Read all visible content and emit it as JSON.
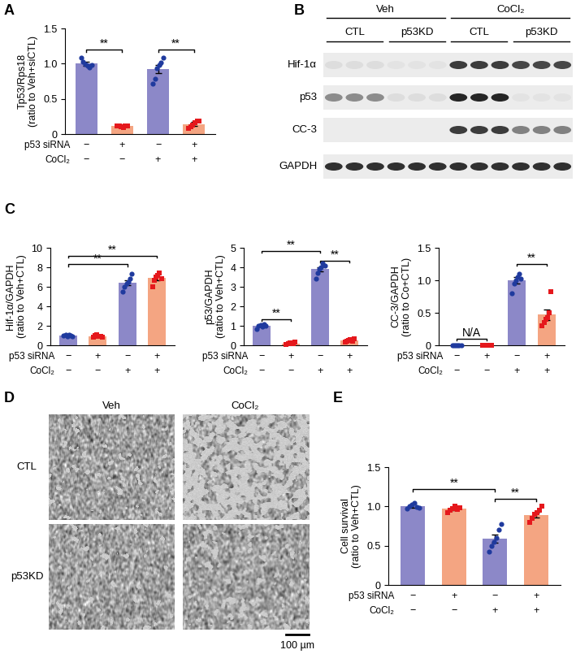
{
  "chart_data": [
    {
      "panel": "A",
      "type": "bar",
      "ylabel": "Tp53/Rps18\n(ratio to Veh+siCTL)",
      "categories": [
        null,
        null,
        null,
        null
      ],
      "values": [
        1.0,
        0.11,
        0.92,
        0.14
      ],
      "errors": [
        0.03,
        0.01,
        0.06,
        0.03
      ],
      "points": [
        [
          1.08,
          1.03,
          0.99,
          0.97,
          0.95,
          0.98
        ],
        [
          0.11,
          0.12,
          0.1,
          0.09,
          0.11,
          0.12
        ],
        [
          0.72,
          0.78,
          0.93,
          0.98,
          1.02,
          1.09
        ],
        [
          0.08,
          0.1,
          0.13,
          0.16,
          0.18,
          0.19
        ]
      ],
      "colors": [
        "#8c88c8",
        "#f4a582",
        "#8c88c8",
        "#f4a582"
      ],
      "point_colors": [
        "#1f3a9e",
        "#e5181c",
        "#1f3a9e",
        "#e5181c"
      ],
      "markers": [
        "circle",
        "square",
        "circle",
        "square"
      ],
      "ylim": [
        0,
        1.5
      ],
      "yticks": [
        0,
        0.5,
        1.0,
        1.5
      ],
      "conditions": [
        {
          "label": "p53 siRNA",
          "values": [
            "−",
            "+",
            "−",
            "+"
          ]
        },
        {
          "label": "CoCl₂",
          "values": [
            "−",
            "−",
            "+",
            "+"
          ]
        }
      ],
      "significance": [
        {
          "from": 0,
          "to": 1,
          "y": 1.2,
          "text": "**"
        },
        {
          "from": 2,
          "to": 3,
          "y": 1.2,
          "text": "**"
        }
      ]
    },
    {
      "panel": "C",
      "type": "bar",
      "ylabel": "Hif-1α/GAPDH\n(ratio to Veh+CTL)",
      "categories": [
        null,
        null,
        null,
        null
      ],
      "values": [
        1.0,
        0.95,
        6.4,
        6.9
      ],
      "errors": [
        0.03,
        0.05,
        0.25,
        0.2
      ],
      "points": [
        [
          1.0,
          1.05,
          0.95,
          1.1,
          0.98,
          0.92
        ],
        [
          0.8,
          1.0,
          1.1,
          0.9,
          0.95,
          0.85
        ],
        [
          5.5,
          6.0,
          6.3,
          6.5,
          6.8,
          7.3
        ],
        [
          6.0,
          6.7,
          7.0,
          7.2,
          7.4,
          6.8
        ]
      ],
      "colors": [
        "#8c88c8",
        "#f4a582",
        "#8c88c8",
        "#f4a582"
      ],
      "point_colors": [
        "#1f3a9e",
        "#e5181c",
        "#1f3a9e",
        "#e5181c"
      ],
      "markers": [
        "circle",
        "square",
        "circle",
        "square"
      ],
      "ylim": [
        0,
        10
      ],
      "yticks": [
        0,
        2,
        4,
        6,
        8,
        10
      ],
      "conditions": [
        {
          "label": "p53 siRNA",
          "values": [
            "−",
            "+",
            "−",
            "+"
          ]
        },
        {
          "label": "CoCl₂",
          "values": [
            "−",
            "−",
            "+",
            "+"
          ]
        }
      ],
      "significance": [
        {
          "from": 0,
          "to": 2,
          "y": 8.3,
          "text": "**"
        },
        {
          "from": 0,
          "to": 3,
          "y": 9.2,
          "text": "**"
        }
      ]
    },
    {
      "panel": "C",
      "type": "bar",
      "ylabel": "p53/GAPDH\n(ratio to Veh+CTL)",
      "categories": [
        null,
        null,
        null,
        null
      ],
      "values": [
        1.0,
        0.1,
        3.9,
        0.25
      ],
      "errors": [
        0.04,
        0.02,
        0.12,
        0.03
      ],
      "points": [
        [
          0.85,
          1.0,
          1.05,
          0.95,
          1.1,
          0.98
        ],
        [
          0.05,
          0.1,
          0.12,
          0.08,
          0.1,
          0.15
        ],
        [
          3.4,
          3.7,
          3.9,
          4.0,
          4.2,
          4.1
        ],
        [
          0.15,
          0.2,
          0.25,
          0.3,
          0.22,
          0.35
        ]
      ],
      "colors": [
        "#8c88c8",
        "#f4a582",
        "#8c88c8",
        "#f4a582"
      ],
      "point_colors": [
        "#1f3a9e",
        "#e5181c",
        "#1f3a9e",
        "#e5181c"
      ],
      "markers": [
        "circle",
        "square",
        "circle",
        "square"
      ],
      "ylim": [
        0,
        5
      ],
      "yticks": [
        0,
        1,
        2,
        3,
        4,
        5
      ],
      "conditions": [
        {
          "label": "p53 siRNA",
          "values": [
            "−",
            "+",
            "−",
            "+"
          ]
        },
        {
          "label": "CoCl₂",
          "values": [
            "−",
            "−",
            "+",
            "+"
          ]
        }
      ],
      "significance": [
        {
          "from": 0,
          "to": 1,
          "y": 1.35,
          "text": "**"
        },
        {
          "from": 0,
          "to": 2,
          "y": 4.85,
          "text": "**"
        },
        {
          "from": 2,
          "to": 3,
          "y": 4.35,
          "text": "**"
        }
      ]
    },
    {
      "panel": "C",
      "type": "bar",
      "ylabel": "CC-3/GAPDH\n(ratio to Co+CTL)",
      "categories": [
        null,
        null,
        null,
        null
      ],
      "values": [
        0,
        0,
        1.0,
        0.47
      ],
      "errors": [
        0,
        0,
        0.05,
        0.08
      ],
      "points": [
        [
          0,
          0,
          0,
          0,
          0,
          0
        ],
        [
          0,
          0,
          0,
          0,
          0,
          0
        ],
        [
          0.8,
          0.95,
          1.0,
          1.05,
          1.1,
          1.02
        ],
        [
          0.3,
          0.35,
          0.4,
          0.42,
          0.5,
          0.83
        ]
      ],
      "colors": [
        "#8c88c8",
        "#f4a582",
        "#8c88c8",
        "#f4a582"
      ],
      "point_colors": [
        "#1f3a9e",
        "#e5181c",
        "#1f3a9e",
        "#e5181c"
      ],
      "markers": [
        "circle",
        "square",
        "circle",
        "square"
      ],
      "ylim": [
        0,
        1.5
      ],
      "yticks": [
        0,
        0.5,
        1.0,
        1.5
      ],
      "conditions": [
        {
          "label": "p53 siRNA",
          "values": [
            "−",
            "+",
            "−",
            "+"
          ]
        },
        {
          "label": "CoCl₂",
          "values": [
            "−",
            "−",
            "+",
            "+"
          ]
        }
      ],
      "significance": [
        {
          "from": 0,
          "to": 1,
          "y": 0.1,
          "text": "N/A"
        },
        {
          "from": 2,
          "to": 3,
          "y": 1.25,
          "text": "**"
        }
      ]
    },
    {
      "panel": "E",
      "type": "bar",
      "ylabel": "Cell survival\n(ratio to Veh+CTL)",
      "categories": [
        null,
        null,
        null,
        null
      ],
      "values": [
        1.0,
        0.97,
        0.59,
        0.89
      ],
      "errors": [
        0.02,
        0.02,
        0.05,
        0.03
      ],
      "points": [
        [
          0.97,
          1.0,
          1.02,
          1.05,
          0.99,
          0.98
        ],
        [
          0.92,
          0.95,
          0.97,
          1.0,
          0.96,
          0.98
        ],
        [
          0.42,
          0.5,
          0.55,
          0.6,
          0.7,
          0.78
        ],
        [
          0.8,
          0.85,
          0.9,
          0.92,
          0.95,
          1.0
        ]
      ],
      "colors": [
        "#8c88c8",
        "#f4a582",
        "#8c88c8",
        "#f4a582"
      ],
      "point_colors": [
        "#1f3a9e",
        "#e5181c",
        "#1f3a9e",
        "#e5181c"
      ],
      "markers": [
        "circle",
        "square",
        "circle",
        "square"
      ],
      "ylim": [
        0,
        1.5
      ],
      "yticks": [
        0,
        0.5,
        1.0,
        1.5
      ],
      "conditions": [
        {
          "label": "p53 siRNA",
          "values": [
            "−",
            "+",
            "−",
            "+"
          ]
        },
        {
          "label": "CoCl₂",
          "values": [
            "−",
            "−",
            "+",
            "+"
          ]
        }
      ],
      "significance": [
        {
          "from": 0,
          "to": 2,
          "y": 1.22,
          "text": "**"
        },
        {
          "from": 2,
          "to": 3,
          "y": 1.1,
          "text": "**"
        }
      ]
    }
  ],
  "blot": {
    "panel": "B",
    "groups": [
      {
        "label": "Veh",
        "lanes": [
          0,
          5
        ]
      },
      {
        "label": "CoCl₂",
        "lanes": [
          6,
          11
        ]
      }
    ],
    "subgroups": [
      {
        "label": "CTL",
        "lanes": [
          0,
          2
        ]
      },
      {
        "label": "p53KD",
        "lanes": [
          3,
          5
        ]
      },
      {
        "label": "CTL",
        "lanes": [
          6,
          8
        ]
      },
      {
        "label": "p53KD",
        "lanes": [
          9,
          11
        ]
      }
    ],
    "rows": [
      {
        "label": "Hif-1α",
        "intensity": [
          0.15,
          0.15,
          0.15,
          0.12,
          0.12,
          0.12,
          0.85,
          0.85,
          0.85,
          0.8,
          0.8,
          0.8
        ]
      },
      {
        "label": "p53",
        "intensity": [
          0.5,
          0.5,
          0.5,
          0.15,
          0.15,
          0.15,
          0.95,
          0.95,
          0.95,
          0.12,
          0.12,
          0.12
        ]
      },
      {
        "label": "CC-3",
        "intensity": [
          0,
          0,
          0,
          0,
          0,
          0,
          0.85,
          0.85,
          0.85,
          0.55,
          0.55,
          0.55
        ]
      },
      {
        "label": "GAPDH",
        "intensity": [
          0.9,
          0.9,
          0.9,
          0.9,
          0.9,
          0.9,
          0.9,
          0.9,
          0.9,
          0.9,
          0.9,
          0.9
        ]
      }
    ]
  },
  "micrographs": {
    "panel": "D",
    "columns": [
      "Veh",
      "CoCl₂"
    ],
    "rows": [
      "CTL",
      "p53KD"
    ],
    "confluence": [
      [
        0.95,
        0.45
      ],
      [
        0.95,
        0.9
      ]
    ],
    "scale_bar": "100 µm"
  }
}
